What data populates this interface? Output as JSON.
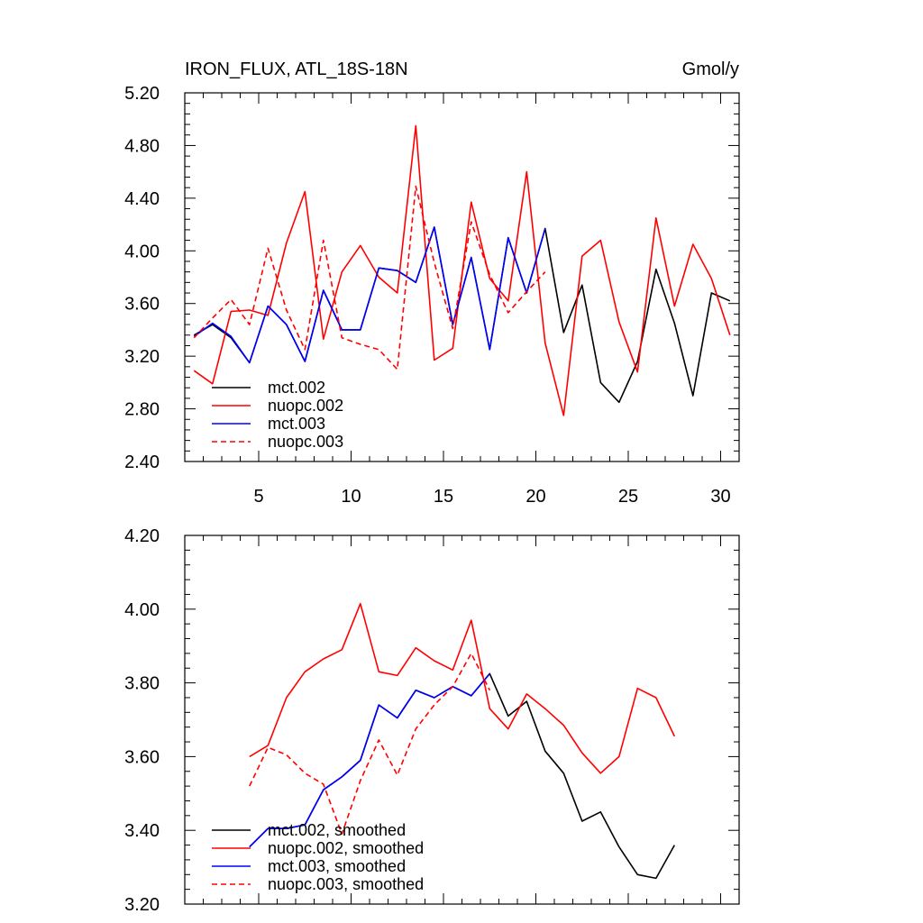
{
  "chart_data": [
    {
      "type": "line",
      "title": "IRON_FLUX, ATL_18S-18N",
      "units": "Gmol/y",
      "xlim": [
        1,
        31
      ],
      "ylim": [
        2.4,
        5.2
      ],
      "xticks": [
        5,
        10,
        15,
        20,
        25,
        30
      ],
      "xtick_labels": [
        "5",
        "10",
        "15",
        "20",
        "25",
        "30"
      ],
      "yticks": [
        2.4,
        2.8,
        3.2,
        3.6,
        4.0,
        4.4,
        4.8,
        5.2
      ],
      "ytick_labels": [
        "2.40",
        "2.80",
        "3.20",
        "3.60",
        "4.00",
        "4.40",
        "4.80",
        "5.20"
      ],
      "legend_position": "bottom-left",
      "series": [
        {
          "name": "mct.002",
          "color": "#000000",
          "dash": "solid",
          "x": [
            1.5,
            2.5,
            3.5,
            4.5,
            5.5,
            6.5,
            7.5,
            8.5,
            9.5,
            10.5,
            11.5,
            12.5,
            13.5,
            14.5,
            15.5,
            16.5,
            17.5,
            18.5,
            19.5,
            20.5,
            21.5,
            22.5,
            23.5,
            24.5,
            25.5,
            26.5,
            27.5,
            28.5,
            29.5,
            30.5
          ],
          "values": [
            3.36,
            3.44,
            3.34,
            3.15,
            3.58,
            3.44,
            3.16,
            3.7,
            3.4,
            3.4,
            3.87,
            3.85,
            3.76,
            4.18,
            3.44,
            3.95,
            3.25,
            4.1,
            3.68,
            4.17,
            3.38,
            3.74,
            3.0,
            2.85,
            3.16,
            3.86,
            3.45,
            2.9,
            3.68,
            3.62
          ]
        },
        {
          "name": "nuopc.002",
          "color": "#ff0000",
          "dash": "solid",
          "x": [
            1.5,
            2.5,
            3.5,
            4.5,
            5.5,
            6.5,
            7.5,
            8.5,
            9.5,
            10.5,
            11.5,
            12.5,
            13.5,
            14.5,
            15.5,
            16.5,
            17.5,
            18.5,
            19.5,
            20.5,
            21.5,
            22.5,
            23.5,
            24.5,
            25.5,
            26.5,
            27.5,
            28.5,
            29.5,
            30.5
          ],
          "values": [
            3.09,
            2.99,
            3.54,
            3.55,
            3.51,
            4.06,
            4.45,
            3.33,
            3.84,
            4.04,
            3.8,
            3.68,
            4.95,
            3.17,
            3.26,
            4.37,
            3.79,
            3.62,
            4.6,
            3.3,
            2.75,
            3.96,
            4.08,
            3.46,
            3.08,
            4.25,
            3.58,
            4.05,
            3.79,
            3.36
          ]
        },
        {
          "name": "mct.003",
          "color": "#0000ff",
          "dash": "solid",
          "x": [
            1.5,
            2.5,
            3.5,
            4.5,
            5.5,
            6.5,
            7.5,
            8.5,
            9.5,
            10.5,
            11.5,
            12.5,
            13.5,
            14.5,
            15.5,
            16.5,
            17.5,
            18.5,
            19.5,
            20.5
          ],
          "values": [
            3.35,
            3.45,
            3.35,
            3.15,
            3.58,
            3.44,
            3.16,
            3.7,
            3.4,
            3.4,
            3.87,
            3.85,
            3.76,
            4.18,
            3.44,
            3.95,
            3.25,
            4.1,
            3.68,
            4.17
          ]
        },
        {
          "name": "nuopc.003",
          "color": "#ff0000",
          "dash": "dashed",
          "x": [
            1.5,
            2.5,
            3.5,
            4.5,
            5.5,
            6.5,
            7.5,
            8.5,
            9.5,
            10.5,
            11.5,
            12.5,
            13.5,
            14.5,
            15.5,
            16.5,
            17.5,
            18.5,
            19.5,
            20.5
          ],
          "values": [
            3.34,
            3.49,
            3.63,
            3.44,
            4.02,
            3.55,
            3.25,
            4.08,
            3.34,
            3.29,
            3.25,
            3.1,
            4.49,
            3.91,
            3.41,
            4.22,
            3.82,
            3.53,
            3.69,
            3.84
          ]
        }
      ]
    },
    {
      "type": "line",
      "title": "",
      "xlim": [
        1,
        31
      ],
      "ylim": [
        3.2,
        4.2
      ],
      "yticks": [
        3.2,
        3.4,
        3.6,
        3.8,
        4.0,
        4.2
      ],
      "ytick_labels": [
        "3.20",
        "3.40",
        "3.60",
        "3.80",
        "4.00",
        "4.20"
      ],
      "legend_position": "bottom-left",
      "series": [
        {
          "name": "mct.002, smoothed",
          "color": "#000000",
          "dash": "solid",
          "x": [
            4.5,
            5.5,
            6.5,
            7.5,
            8.5,
            9.5,
            10.5,
            11.5,
            12.5,
            13.5,
            14.5,
            15.5,
            16.5,
            17.5,
            18.5,
            19.5,
            20.5,
            21.5,
            22.5,
            23.5,
            24.5,
            25.5,
            26.5,
            27.5
          ],
          "values": [
            3.355,
            3.405,
            3.405,
            3.415,
            3.51,
            3.545,
            3.59,
            3.74,
            3.705,
            3.78,
            3.76,
            3.79,
            3.765,
            3.825,
            3.71,
            3.75,
            3.615,
            3.555,
            3.425,
            3.45,
            3.355,
            3.28,
            3.27,
            3.36
          ]
        },
        {
          "name": "nuopc.002, smoothed",
          "color": "#ff0000",
          "dash": "solid",
          "x": [
            4.5,
            5.5,
            6.5,
            7.5,
            8.5,
            9.5,
            10.5,
            11.5,
            12.5,
            13.5,
            14.5,
            15.5,
            16.5,
            17.5,
            18.5,
            19.5,
            20.5,
            21.5,
            22.5,
            23.5,
            24.5,
            25.5,
            26.5,
            27.5
          ],
          "values": [
            3.6,
            3.63,
            3.76,
            3.83,
            3.865,
            3.89,
            4.015,
            3.83,
            3.82,
            3.895,
            3.86,
            3.835,
            3.97,
            3.73,
            3.675,
            3.77,
            3.73,
            3.685,
            3.61,
            3.555,
            3.6,
            3.785,
            3.76,
            3.655
          ]
        },
        {
          "name": "mct.003, smoothed",
          "color": "#0000ff",
          "dash": "solid",
          "x": [
            4.5,
            5.5,
            6.5,
            7.5,
            8.5,
            9.5,
            10.5,
            11.5,
            12.5,
            13.5,
            14.5,
            15.5,
            16.5,
            17.5
          ],
          "values": [
            3.355,
            3.405,
            3.405,
            3.415,
            3.51,
            3.545,
            3.59,
            3.74,
            3.705,
            3.78,
            3.76,
            3.79,
            3.765,
            3.825
          ]
        },
        {
          "name": "nuopc.003, smoothed",
          "color": "#ff0000",
          "dash": "dashed",
          "x": [
            4.5,
            5.5,
            6.5,
            7.5,
            8.5,
            9.5,
            10.5,
            11.5,
            12.5,
            13.5,
            14.5,
            15.5,
            16.5,
            17.5
          ],
          "values": [
            3.52,
            3.625,
            3.605,
            3.555,
            3.525,
            3.39,
            3.535,
            3.645,
            3.55,
            3.675,
            3.74,
            3.79,
            3.88,
            3.78
          ]
        }
      ]
    }
  ]
}
